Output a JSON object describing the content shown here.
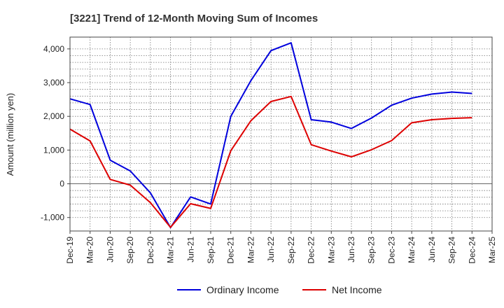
{
  "chart_data": {
    "type": "line",
    "title": "[3221]  Trend of 12-Month Moving Sum of Incomes",
    "ylabel": "Amount (million yen)",
    "xlabel": "",
    "ylim": [
      -1400,
      4350
    ],
    "yticks": [
      -1000,
      0,
      1000,
      2000,
      3000,
      4000
    ],
    "ytick_labels": [
      "-1,000",
      "0",
      "1,000",
      "2,000",
      "3,000",
      "4,000"
    ],
    "categories": [
      "Dec-19",
      "Mar-20",
      "Jun-20",
      "Sep-20",
      "Dec-20",
      "Mar-21",
      "Jun-21",
      "Sep-21",
      "Dec-21",
      "Mar-22",
      "Jun-22",
      "Sep-22",
      "Dec-22",
      "Mar-23",
      "Jun-23",
      "Sep-23",
      "Dec-23",
      "Mar-24",
      "Jun-24",
      "Sep-24",
      "Dec-24",
      "Mar-25"
    ],
    "grid": true,
    "legend_position": "bottom",
    "series": [
      {
        "name": "Ordinary Income",
        "color": "#0000dd",
        "values": [
          2520,
          2350,
          700,
          380,
          -270,
          -1300,
          -390,
          -600,
          2000,
          3060,
          3950,
          4180,
          1900,
          1830,
          1640,
          1950,
          2330,
          2540,
          2660,
          2720,
          2680,
          null
        ]
      },
      {
        "name": "Net Income",
        "color": "#dd0000",
        "values": [
          1620,
          1270,
          130,
          -40,
          -560,
          -1290,
          -590,
          -730,
          980,
          1870,
          2440,
          2590,
          1160,
          970,
          800,
          1010,
          1280,
          1810,
          1900,
          1940,
          1960,
          null
        ]
      }
    ]
  }
}
